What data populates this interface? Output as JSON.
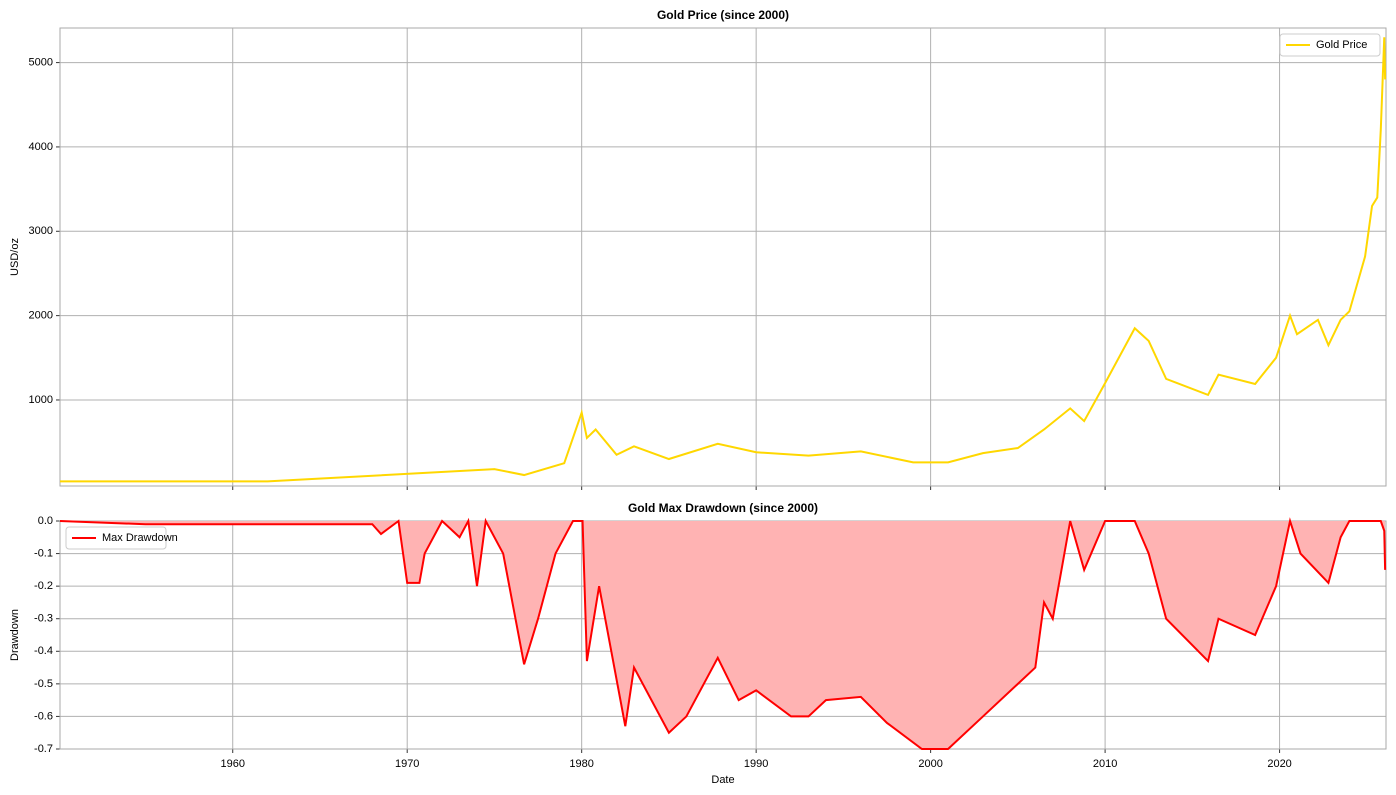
{
  "chart_data": [
    {
      "type": "line",
      "title": "Gold Price (since 2000)",
      "ylabel": "USD/oz",
      "x": [
        1950.1,
        1955,
        1962,
        1975,
        1976.7,
        1979,
        1980.0,
        1980.3,
        1980.8,
        1982,
        1983,
        1985,
        1987.8,
        1990,
        1993,
        1996,
        1999,
        2001,
        2003,
        2005,
        2006.5,
        2008,
        2008.8,
        2010,
        2011.7,
        2012.5,
        2013.5,
        2015.9,
        2016.5,
        2018.6,
        2019.8,
        2020.6,
        2021,
        2022.2,
        2022.8,
        2023.5,
        2024,
        2024.9,
        2025.3,
        2025.6,
        2025.8,
        2026.0,
        2026.05
      ],
      "series": [
        {
          "name": "Gold Price",
          "color": "#FFD700",
          "values": [
            35,
            35,
            35,
            180,
            110,
            250,
            850,
            550,
            650,
            350,
            450,
            300,
            480,
            380,
            340,
            390,
            260,
            260,
            370,
            430,
            650,
            900,
            750,
            1200,
            1850,
            1700,
            1250,
            1060,
            1300,
            1190,
            1500,
            2000,
            1780,
            1950,
            1650,
            1950,
            2050,
            2700,
            3300,
            3400,
            4200,
            5300,
            4800
          ]
        }
      ],
      "gap_after": null,
      "xlim": [
        1950.1,
        2026.1
      ],
      "xticks": [
        1960,
        1970,
        1980,
        1990,
        2000,
        2010,
        2020
      ],
      "ylim": [
        -20,
        5410
      ],
      "yticks": [
        1000,
        2000,
        3000,
        4000,
        5000
      ],
      "grid": true,
      "legend": "upper right"
    },
    {
      "type": "area",
      "title": "Gold Max Drawdown (since 2000)",
      "xlabel": "Date",
      "ylabel": "Drawdown",
      "x": [
        1950.1,
        1955,
        1962,
        1968,
        1968.5,
        1969.5,
        1970,
        1970.7,
        1971,
        1972,
        1973,
        1973.5,
        1974,
        1974.5,
        1975.5,
        1976.7,
        1977.5,
        1978.5,
        1979.5,
        1980.05,
        1980.3,
        1981,
        1982.5,
        1983,
        1985,
        1986,
        1987.8,
        1989,
        1990,
        1992,
        1993,
        1994,
        1996,
        1997.5,
        1999.5,
        2001,
        2003,
        2005,
        2006,
        2006.5,
        2007,
        2008,
        2008.8,
        2010,
        2011.7,
        2012.5,
        2013.5,
        2015.9,
        2016.5,
        2018.6,
        2019.8,
        2020.6,
        2021.2,
        2022.8,
        2023.5,
        2024,
        2025.8,
        2026.0,
        2026.05
      ],
      "series": [
        {
          "name": "Max Drawdown",
          "color": "#FF0000",
          "values": [
            0,
            -0.01,
            -0.01,
            -0.01,
            -0.04,
            0,
            -0.19,
            -0.19,
            -0.1,
            0,
            -0.05,
            0,
            -0.2,
            0,
            -0.1,
            -0.44,
            -0.3,
            -0.1,
            0,
            0,
            -0.43,
            -0.2,
            -0.63,
            -0.45,
            -0.65,
            -0.6,
            -0.42,
            -0.55,
            -0.52,
            -0.6,
            -0.6,
            -0.55,
            -0.54,
            -0.62,
            -0.7,
            -0.7,
            -0.6,
            -0.5,
            -0.45,
            -0.25,
            -0.3,
            0,
            -0.15,
            0,
            0,
            -0.1,
            -0.3,
            -0.43,
            -0.3,
            -0.35,
            -0.2,
            0,
            -0.1,
            -0.19,
            -0.05,
            0,
            0,
            -0.03,
            -0.15
          ]
        }
      ],
      "fill_color": "#FFB3B3",
      "xlim": [
        1950.1,
        2026.1
      ],
      "xticks": [
        1960,
        1970,
        1980,
        1990,
        2000,
        2010,
        2020
      ],
      "ylim": [
        -0.7,
        0
      ],
      "yticks": [
        {
          "value": 0,
          "label": "0.0"
        },
        -0.1,
        -0.2,
        -0.3,
        -0.4,
        -0.5,
        -0.6,
        -0.7
      ],
      "grid": true,
      "legend": "upper left"
    }
  ]
}
